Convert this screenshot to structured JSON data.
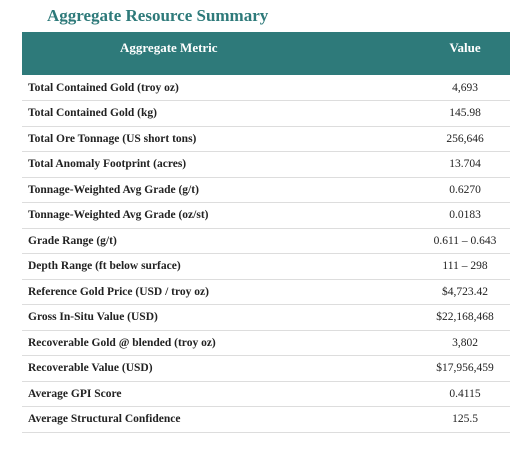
{
  "header": {
    "title": "Aggregate Resource Summary"
  },
  "table": {
    "columns": [
      "Aggregate Metric",
      "Value"
    ],
    "rows": [
      [
        "Total Contained Gold (troy oz)",
        "4,693"
      ],
      [
        "Total Contained Gold (kg)",
        "145.98"
      ],
      [
        "Total Ore Tonnage (US short tons)",
        "256,646"
      ],
      [
        "Total Anomaly Footprint (acres)",
        "13.704"
      ],
      [
        "Tonnage-Weighted Avg Grade (g/t)",
        "0.6270"
      ],
      [
        "Tonnage-Weighted Avg Grade (oz/st)",
        "0.0183"
      ],
      [
        "Grade Range (g/t)",
        "0.611 – 0.643"
      ],
      [
        "Depth Range (ft below surface)",
        "111 – 298"
      ],
      [
        "Reference Gold Price (USD / troy oz)",
        "$4,723.42"
      ],
      [
        "Gross In-Situ Value (USD)",
        "$22,168,468"
      ],
      [
        "Recoverable Gold @ blended (troy oz)",
        "3,802"
      ],
      [
        "Recoverable Value (USD)",
        "$17,956,459"
      ],
      [
        "Average GPI Score",
        "0.4115"
      ],
      [
        "Average Structural Confidence",
        "125.5"
      ]
    ]
  }
}
